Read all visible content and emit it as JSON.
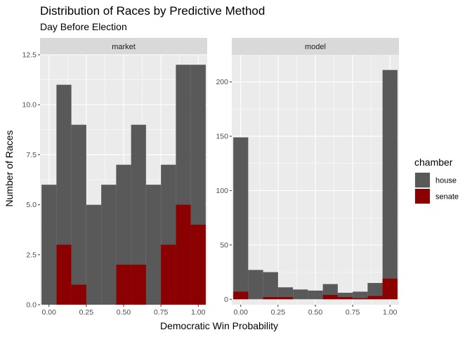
{
  "chart_data": {
    "type": "bar",
    "title": "Distribution of Races by Predictive Method",
    "subtitle": "Day Before Election",
    "xlabel": "Democratic Win Probability",
    "ylabel": "Number of Races",
    "grid": true,
    "legend": {
      "title": "chamber",
      "placement": "right",
      "entries": [
        {
          "name": "house",
          "color": "#595959"
        },
        {
          "name": "senate",
          "color": "#8B0000"
        }
      ]
    },
    "bin_width": 0.1,
    "x_ticks": [
      "0.00",
      "0.25",
      "0.50",
      "0.75",
      "1.00"
    ],
    "x_tick_values": [
      0,
      0.25,
      0.5,
      0.75,
      1.0
    ],
    "bin_centers": [
      0,
      0.1,
      0.2,
      0.3,
      0.4,
      0.5,
      0.6,
      0.7,
      0.8,
      0.9,
      1.0
    ],
    "panels": [
      {
        "strip": "market",
        "xlim": [
          -0.06,
          1.06
        ],
        "ylim": [
          0,
          12.5
        ],
        "y_ticks": [
          "0.0",
          "2.5",
          "5.0",
          "7.5",
          "10.0",
          "12.5"
        ],
        "y_tick_values": [
          0,
          2.5,
          5,
          7.5,
          10,
          12.5
        ],
        "series": [
          {
            "name": "house",
            "values": [
              6,
              11,
              9,
              5,
              6,
              7,
              9,
              6,
              7,
              12,
              12
            ]
          },
          {
            "name": "senate",
            "values": [
              0,
              3,
              1,
              0,
              0,
              2,
              2,
              0,
              3,
              5,
              4
            ]
          }
        ]
      },
      {
        "strip": "model",
        "xlim": [
          -0.06,
          1.06
        ],
        "ylim": [
          -5,
          225
        ],
        "y_ticks": [
          "0",
          "50",
          "100",
          "150",
          "200"
        ],
        "y_tick_values": [
          0,
          50,
          100,
          150,
          200
        ],
        "series": [
          {
            "name": "house",
            "values": [
              149,
              27,
              25,
              11,
              9,
              8,
              14,
              6,
              7,
              15,
              211
            ]
          },
          {
            "name": "senate",
            "values": [
              7,
              0,
              2,
              2,
              0,
              0,
              4,
              2,
              1,
              3,
              19
            ]
          }
        ]
      }
    ]
  }
}
